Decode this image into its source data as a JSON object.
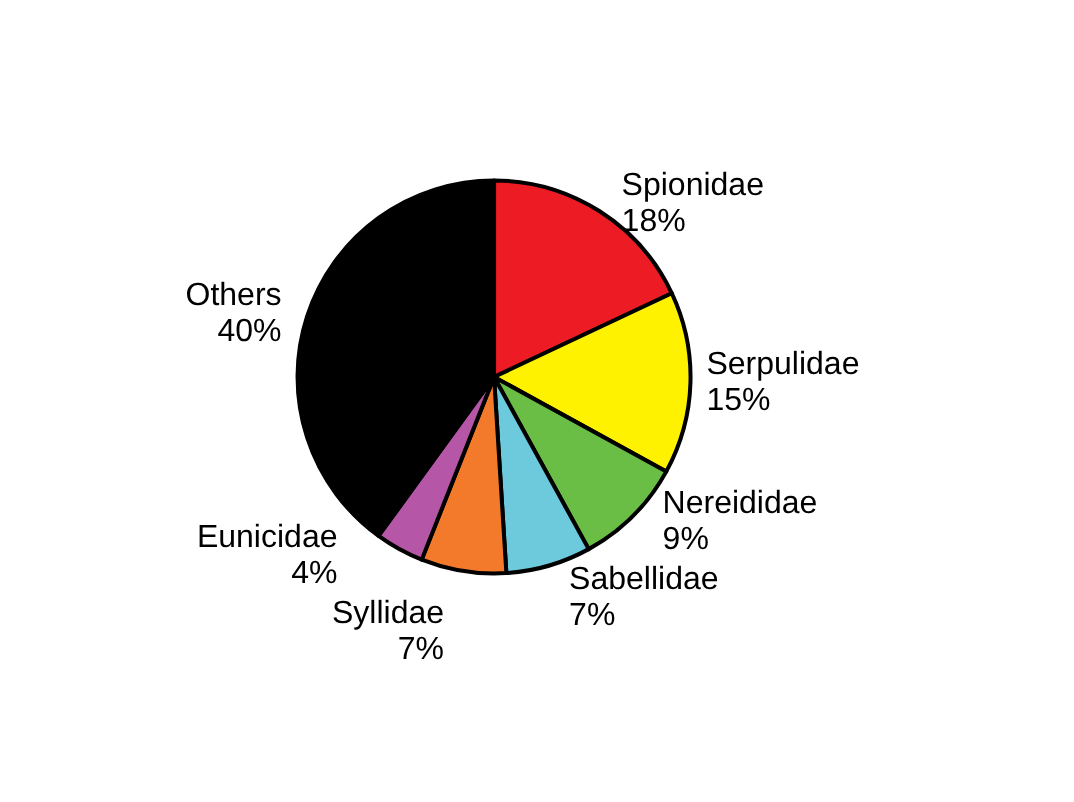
{
  "chart_data": {
    "type": "pie",
    "categories": [
      "Spionidae",
      "Serpulidae",
      "Nereididae",
      "Sabellidae",
      "Syllidae",
      "Eunicidae",
      "Others"
    ],
    "values": [
      18,
      15,
      9,
      7,
      7,
      4,
      40
    ],
    "value_labels": [
      "18%",
      "15%",
      "9%",
      "7%",
      "7%",
      "4%",
      "40%"
    ],
    "colors": [
      "#ed1c24",
      "#fff200",
      "#6abd45",
      "#6dcadc",
      "#f47a2b",
      "#b556a6",
      "#000000"
    ],
    "legend": false
  }
}
